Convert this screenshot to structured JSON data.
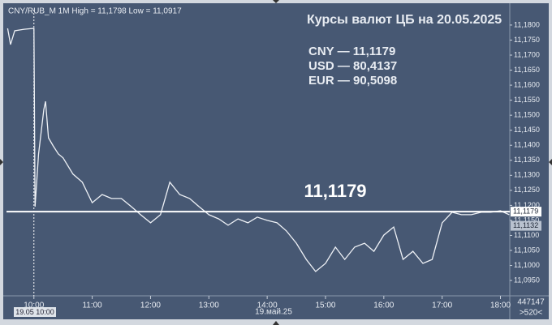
{
  "header": "CNY/RUB_M 1M High = 11,1798 Low = 11,0917",
  "chart_data": {
    "type": "line",
    "title": "Курсы валют ЦБ на 20.05.2025",
    "rates": [
      "CNY — 11,1179",
      "USD — 80,4137",
      "EUR — 90,5098"
    ],
    "x": [
      9.55,
      9.6,
      9.67,
      9.83,
      10.0,
      10.02,
      10.08,
      10.17,
      10.2,
      10.25,
      10.33,
      10.42,
      10.5,
      10.67,
      10.83,
      11.0,
      11.17,
      11.33,
      11.5,
      11.67,
      11.83,
      12.0,
      12.17,
      12.33,
      12.5,
      12.67,
      12.83,
      13.0,
      13.17,
      13.33,
      13.5,
      13.67,
      13.83,
      14.0,
      14.17,
      14.33,
      14.5,
      14.67,
      14.83,
      15.0,
      15.17,
      15.33,
      15.5,
      15.67,
      15.83,
      16.0,
      16.17,
      16.33,
      16.5,
      16.67,
      16.83,
      17.0,
      17.17,
      17.33,
      17.5,
      17.67,
      17.83,
      18.0,
      18.15
    ],
    "values": [
      11.1789,
      11.1735,
      11.1781,
      11.1786,
      11.1789,
      11.1196,
      11.1371,
      11.1519,
      11.1546,
      11.1425,
      11.1398,
      11.1371,
      11.1358,
      11.1304,
      11.1277,
      11.1209,
      11.1236,
      11.1223,
      11.1223,
      11.1196,
      11.1169,
      11.1142,
      11.1169,
      11.1277,
      11.1236,
      11.1223,
      11.1196,
      11.1169,
      11.1155,
      11.1134,
      11.1155,
      11.1142,
      11.1161,
      11.115,
      11.1142,
      11.1115,
      11.1074,
      11.102,
      11.098,
      11.1007,
      11.1061,
      11.102,
      11.1061,
      11.1074,
      11.1047,
      11.1101,
      11.1128,
      11.102,
      11.1047,
      11.1007,
      11.102,
      11.1142,
      11.1177,
      11.1169,
      11.1169,
      11.1177,
      11.1177,
      11.1182,
      11.1169
    ],
    "color": "#eef1f6",
    "annotation": {
      "value": 11.1179,
      "label": "11,1179"
    },
    "price_labels": [
      {
        "value": 11.1179,
        "label": "11,1179"
      },
      {
        "value": 11.1132,
        "label": "11,1132"
      }
    ],
    "cursor": {
      "value": 10,
      "label": "19.05 10:00"
    },
    "date_label": "19.май.25",
    "footer": [
      "447147",
      ">520<"
    ],
    "xlim": [
      9.53,
      18.16
    ],
    "xticks": [
      {
        "value": 10,
        "label": "10:00"
      },
      {
        "value": 11,
        "label": "11:00"
      },
      {
        "value": 12,
        "label": "12:00"
      },
      {
        "value": 13,
        "label": "13:00"
      },
      {
        "value": 14,
        "label": "14:00"
      },
      {
        "value": 15,
        "label": "15:00"
      },
      {
        "value": 16,
        "label": "16:00"
      },
      {
        "value": 17,
        "label": "17:00"
      },
      {
        "value": 18,
        "label": "18:00"
      }
    ],
    "ylim": [
      11.0899,
      11.1851
    ],
    "yticks": [
      {
        "value": 11.095,
        "label": "11,0950"
      },
      {
        "value": 11.1,
        "label": "11,1000"
      },
      {
        "value": 11.105,
        "label": "11,1050"
      },
      {
        "value": 11.11,
        "label": "11,1100"
      },
      {
        "value": 11.115,
        "label": "11,1150"
      },
      {
        "value": 11.12,
        "label": "11,1200"
      },
      {
        "value": 11.125,
        "label": "11,1250"
      },
      {
        "value": 11.13,
        "label": "11,1300"
      },
      {
        "value": 11.135,
        "label": "11,1350"
      },
      {
        "value": 11.14,
        "label": "11,1400"
      },
      {
        "value": 11.145,
        "label": "11,1450"
      },
      {
        "value": 11.15,
        "label": "11,1500"
      },
      {
        "value": 11.155,
        "label": "11,1550"
      },
      {
        "value": 11.16,
        "label": "11,1600"
      },
      {
        "value": 11.165,
        "label": "11,1650"
      },
      {
        "value": 11.17,
        "label": "11,1700"
      },
      {
        "value": 11.175,
        "label": "11,1750"
      },
      {
        "value": 11.18,
        "label": "11,1800"
      }
    ]
  }
}
